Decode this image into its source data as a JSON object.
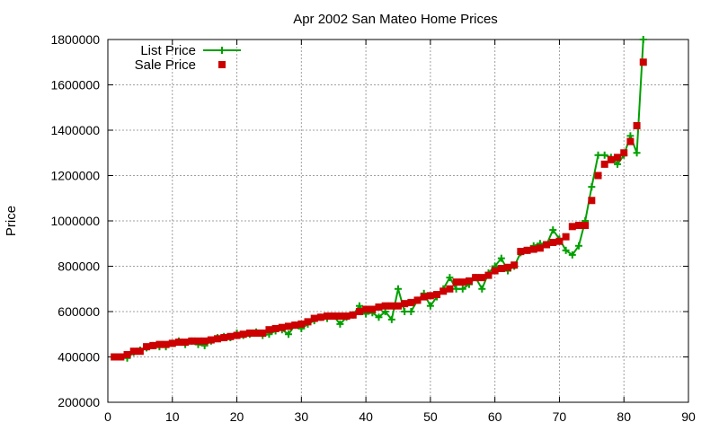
{
  "chart_data": {
    "type": "line",
    "title": "Apr 2002 San Mateo Home Prices",
    "xlabel": "",
    "ylabel": "Price",
    "xlim": [
      0,
      90
    ],
    "ylim": [
      200000,
      1800000
    ],
    "x_ticks": [
      "0",
      "10",
      "20",
      "30",
      "40",
      "50",
      "60",
      "70",
      "80",
      "90"
    ],
    "y_ticks": [
      "200000",
      "400000",
      "600000",
      "800000",
      "1000000",
      "1200000",
      "1400000",
      "1600000",
      "1800000"
    ],
    "grid": true,
    "legend_position": "top-left",
    "series": [
      {
        "name": "List Price",
        "style": "line-with-plus-markers",
        "color": "#00a000",
        "x": [
          1,
          2,
          3,
          4,
          5,
          6,
          7,
          8,
          9,
          10,
          11,
          12,
          13,
          14,
          15,
          16,
          17,
          18,
          19,
          20,
          21,
          22,
          23,
          24,
          25,
          26,
          27,
          28,
          29,
          30,
          31,
          32,
          33,
          34,
          35,
          36,
          37,
          38,
          39,
          40,
          41,
          42,
          43,
          44,
          45,
          46,
          47,
          48,
          49,
          50,
          51,
          52,
          53,
          54,
          55,
          56,
          57,
          58,
          59,
          60,
          61,
          62,
          63,
          64,
          65,
          66,
          67,
          68,
          69,
          70,
          71,
          72,
          73,
          74,
          75,
          76,
          77,
          78,
          79,
          80,
          81,
          82,
          83
        ],
        "y": [
          400000,
          400000,
          395000,
          420000,
          430000,
          440000,
          450000,
          445000,
          445000,
          460000,
          470000,
          455000,
          470000,
          455000,
          450000,
          470000,
          485000,
          490000,
          485000,
          505000,
          495000,
          500000,
          510000,
          495000,
          500000,
          515000,
          520000,
          500000,
          540000,
          525000,
          545000,
          560000,
          575000,
          570000,
          580000,
          545000,
          575000,
          585000,
          625000,
          590000,
          595000,
          575000,
          600000,
          565000,
          700000,
          600000,
          600000,
          650000,
          680000,
          625000,
          665000,
          700000,
          750000,
          700000,
          700000,
          720000,
          750000,
          700000,
          770000,
          800000,
          835000,
          780000,
          800000,
          860000,
          870000,
          890000,
          900000,
          895000,
          960000,
          920000,
          870000,
          850000,
          890000,
          1000000,
          1150000,
          1290000,
          1290000,
          1280000,
          1250000,
          1290000,
          1375000,
          1300000,
          1800000
        ]
      },
      {
        "name": "Sale Price",
        "style": "square-markers",
        "color": "#cc0000",
        "x": [
          1,
          2,
          3,
          4,
          5,
          6,
          7,
          8,
          9,
          10,
          11,
          12,
          13,
          14,
          15,
          16,
          17,
          18,
          19,
          20,
          21,
          22,
          23,
          24,
          25,
          26,
          27,
          28,
          29,
          30,
          31,
          32,
          33,
          34,
          35,
          36,
          37,
          38,
          39,
          40,
          41,
          42,
          43,
          44,
          45,
          46,
          47,
          48,
          49,
          50,
          51,
          52,
          53,
          54,
          55,
          56,
          57,
          58,
          59,
          60,
          61,
          62,
          63,
          64,
          65,
          66,
          67,
          68,
          69,
          70,
          71,
          72,
          73,
          74,
          75,
          76,
          77,
          78,
          79,
          80,
          81,
          82,
          83
        ],
        "y": [
          400000,
          400000,
          410000,
          425000,
          425000,
          445000,
          450000,
          455000,
          455000,
          460000,
          465000,
          465000,
          470000,
          470000,
          470000,
          475000,
          480000,
          485000,
          490000,
          495000,
          500000,
          505000,
          505000,
          505000,
          520000,
          525000,
          530000,
          535000,
          540000,
          545000,
          555000,
          570000,
          575000,
          580000,
          580000,
          580000,
          580000,
          585000,
          600000,
          610000,
          610000,
          620000,
          625000,
          625000,
          625000,
          635000,
          640000,
          650000,
          665000,
          670000,
          675000,
          690000,
          700000,
          730000,
          730000,
          735000,
          750000,
          750000,
          760000,
          780000,
          790000,
          795000,
          805000,
          865000,
          870000,
          875000,
          880000,
          895000,
          905000,
          910000,
          930000,
          975000,
          980000,
          980000,
          1090000,
          1200000,
          1250000,
          1270000,
          1280000,
          1300000,
          1350000,
          1420000,
          1700000
        ]
      }
    ]
  }
}
